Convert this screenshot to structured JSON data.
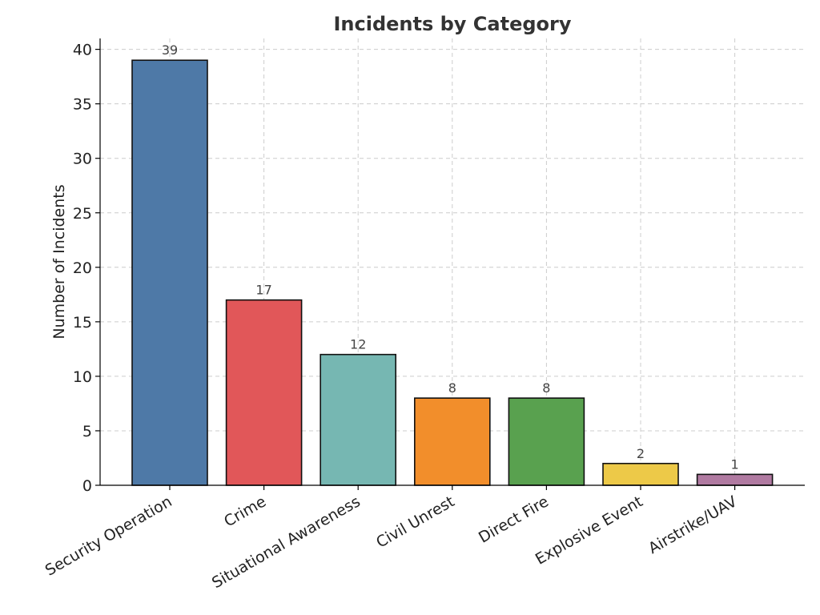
{
  "chart_data": {
    "type": "bar",
    "title": "Incidents by Category",
    "xlabel": "",
    "ylabel": "Number of Incidents",
    "categories": [
      "Security Operation",
      "Crime",
      "Situational Awareness",
      "Civil Unrest",
      "Direct Fire",
      "Explosive Event",
      "Airstrike/UAV"
    ],
    "values": [
      39,
      17,
      12,
      8,
      8,
      2,
      1
    ],
    "colors": [
      "#4E79A7",
      "#E15759",
      "#76B7B2",
      "#F28E2B",
      "#59A14F",
      "#EDC948",
      "#B07AA1"
    ],
    "ylim": [
      0,
      41
    ],
    "yticks": [
      0,
      5,
      10,
      15,
      20,
      25,
      30,
      35,
      40
    ],
    "grid": true,
    "data_labels": true
  }
}
